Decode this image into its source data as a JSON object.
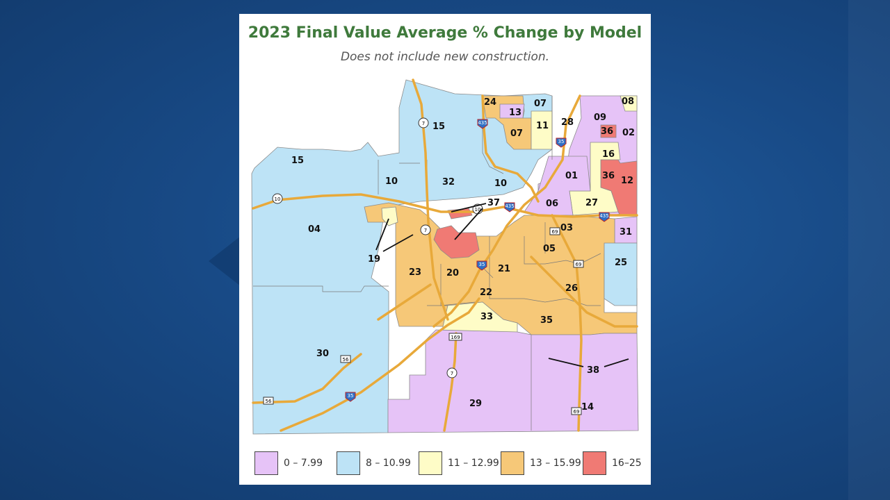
{
  "map": {
    "title": "2023 Final Value Average % Change by Model",
    "subtitle": "Does not include new construction.",
    "colors": {
      "range_0": "#e6c3f7",
      "range_8": "#bde3f6",
      "range_11": "#fefcc7",
      "range_13": "#f6c878",
      "range_16": "#f07a74",
      "road": "#e8a93a"
    },
    "legend": [
      {
        "label": "0 – 7.99",
        "color": "#e6c3f7"
      },
      {
        "label": "8 – 10.99",
        "color": "#bde3f6"
      },
      {
        "label": "11 – 12.99",
        "color": "#fefcc7"
      },
      {
        "label": "13 – 15.99",
        "color": "#f6c878"
      },
      {
        "label": "16–25",
        "color": "#f07a74"
      }
    ],
    "model_labels": [
      "24",
      "13",
      "07",
      "08",
      "09",
      "36",
      "02",
      "15",
      "11",
      "28",
      "07",
      "16",
      "15",
      "10",
      "32",
      "10",
      "01",
      "36",
      "12",
      "37",
      "06",
      "27",
      "04",
      "03",
      "31",
      "19",
      "05",
      "23",
      "20",
      "21",
      "25",
      "22",
      "26",
      "33",
      "35",
      "30",
      "38",
      "29",
      "14"
    ],
    "road_shields": [
      "7",
      "435",
      "35",
      "10",
      "10",
      "435",
      "7",
      "35",
      "69",
      "69",
      "169",
      "7",
      "56",
      "56",
      "35",
      "69",
      "435"
    ]
  }
}
